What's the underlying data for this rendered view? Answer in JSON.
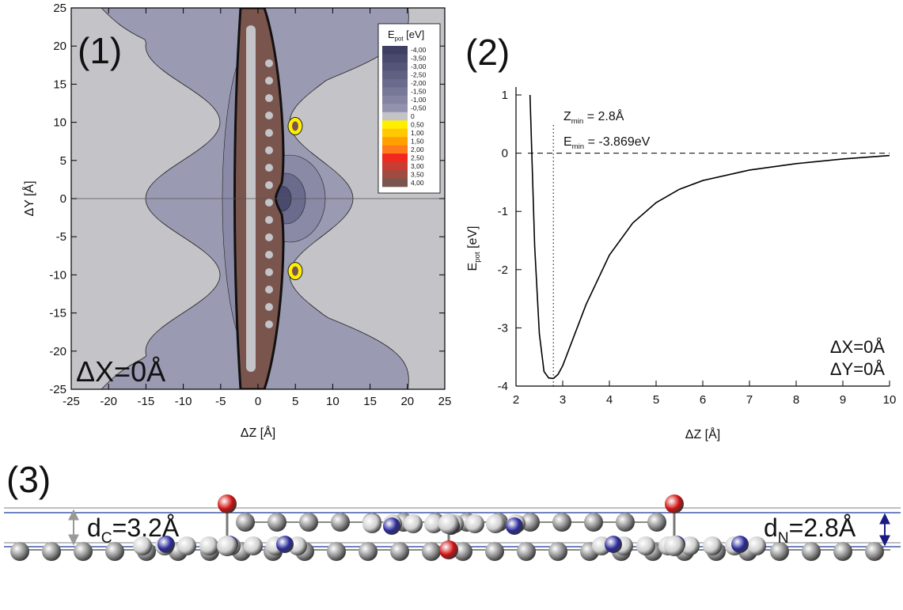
{
  "chart_data": [
    {
      "type": "contour",
      "panel_label": "(1)",
      "annotation": "ΔX=0Å",
      "x_label": "ΔZ [Å]",
      "y_label": "ΔY [Å]",
      "xlim": [
        -25,
        25
      ],
      "ylim": [
        -25,
        25
      ],
      "xticks": [
        -25,
        -20,
        -15,
        -10,
        -5,
        0,
        5,
        10,
        15,
        20,
        25
      ],
      "yticks": [
        -25,
        -20,
        -15,
        -10,
        -5,
        0,
        5,
        10,
        15,
        20,
        25
      ],
      "hline": 0,
      "legend_title": {
        "main": "E",
        "sub": "pot",
        "unit": " [eV]"
      },
      "levels": [
        {
          "value": -4,
          "label": "-4,00"
        },
        {
          "value": -3.5,
          "label": "-3,50"
        },
        {
          "value": -3,
          "label": "-3,00"
        },
        {
          "value": -2.5,
          "label": "-2,50"
        },
        {
          "value": -2,
          "label": "-2,00"
        },
        {
          "value": -1.5,
          "label": "-1,50"
        },
        {
          "value": -1,
          "label": "-1,00"
        },
        {
          "value": -0.5,
          "label": "-0,50"
        },
        0,
        {
          "value": 0.5,
          "label": "0,50"
        },
        {
          "value": 1,
          "label": "1,00"
        },
        {
          "value": 1.5,
          "label": "1,50"
        },
        {
          "value": 2,
          "label": "2,00"
        },
        {
          "value": 2.5,
          "label": "2,50"
        },
        {
          "value": 3,
          "label": "3,00"
        },
        {
          "value": 3.5,
          "label": "3,50"
        },
        {
          "value": 4,
          "label": "4,00"
        }
      ],
      "level_colors": [
        "#3f3f63",
        "#4a4a6e",
        "#555579",
        "#606083",
        "#6b6b8d",
        "#777797",
        "#8484a2",
        "#9292ae",
        "#c3c3c8",
        "#ffee00",
        "#ffc800",
        "#ffa000",
        "#ff7a1a",
        "#f0281e",
        "#c83c32",
        "#a04a40",
        "#7a554d"
      ]
    },
    {
      "type": "line",
      "panel_label": "(2)",
      "x_label": "ΔZ [Å]",
      "y_label": {
        "main": "E",
        "sub": "pot",
        "unit": " [eV]"
      },
      "xlim": [
        2,
        10
      ],
      "ylim": [
        -4,
        1
      ],
      "xticks": [
        2,
        3,
        4,
        5,
        6,
        7,
        8,
        9,
        10
      ],
      "yticks": [
        -4,
        -3,
        -2,
        -1,
        0,
        1
      ],
      "hline": 0,
      "vline": 2.8,
      "annotations": [
        {
          "main": "Z",
          "sub": "min",
          "rest": " = 2.8Å"
        },
        {
          "main": "E",
          "sub": "min",
          "rest": " = -3.869eV"
        },
        "ΔX=0Å",
        "ΔY=0Å"
      ],
      "series": [
        {
          "color": "#000000",
          "x": [
            2.3,
            2.4,
            2.5,
            2.6,
            2.7,
            2.8,
            2.9,
            3,
            3.5,
            4,
            4.5,
            5,
            5.5,
            6,
            7,
            8,
            9,
            10
          ],
          "values": [
            1.0,
            -1.6,
            -3.1,
            -3.75,
            -3.86,
            -3.869,
            -3.8,
            -3.65,
            -2.6,
            -1.75,
            -1.2,
            -0.85,
            -0.62,
            -0.47,
            -0.29,
            -0.18,
            -0.1,
            -0.04
          ]
        }
      ]
    }
  ],
  "diagram": {
    "panel_label": "(3)",
    "d_c": {
      "main": "d",
      "sub": "C",
      "rest": "=3.2Å"
    },
    "d_n": {
      "main": "d",
      "sub": "N",
      "rest": "=2.8Å"
    }
  }
}
